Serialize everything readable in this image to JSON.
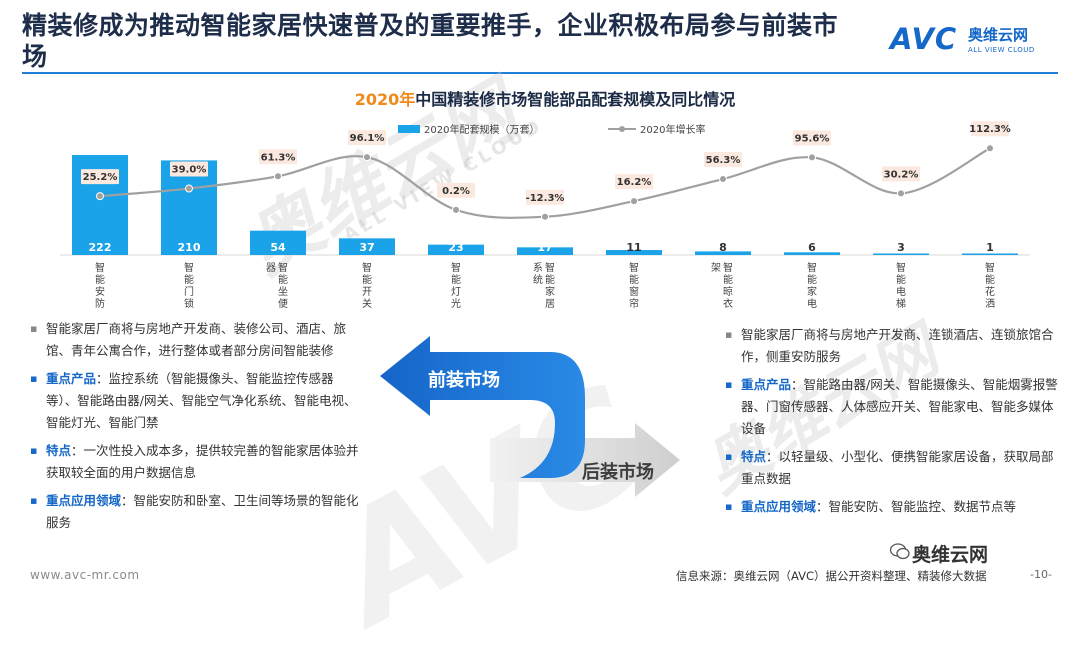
{
  "header": {
    "title": "精装修成为推动智能家居快速普及的重要推手，企业积极布局参与前装市场",
    "logo_mark": "AVC",
    "logo_cn": "奥维云网",
    "logo_en": "ALL VIEW CLOUD"
  },
  "chart_title": {
    "year": "2020年",
    "rest": "中国精装修市场智能部品配套规模及同比情况"
  },
  "chart_data": {
    "type": "bar",
    "categories": [
      "智能安防",
      "智能门锁",
      "智能坐便器",
      "智能开关",
      "智能灯光",
      "智能家居系统",
      "智能窗帘",
      "智能晾衣架",
      "智能家电",
      "智能电梯",
      "智能花洒"
    ],
    "series": [
      {
        "name": "2020年配套规模（万套）",
        "kind": "bar",
        "values": [
          222,
          210,
          54,
          37,
          23,
          17,
          11,
          8,
          6,
          3,
          1
        ]
      },
      {
        "name": "2020年增长率",
        "kind": "line",
        "values": [
          25.2,
          39.0,
          61.3,
          96.1,
          0.2,
          -12.3,
          16.2,
          56.3,
          95.6,
          30.2,
          112.3
        ]
      }
    ],
    "value_labels": [
      "222",
      "210",
      "54",
      "37",
      "23",
      "17",
      "11",
      "8",
      "6",
      "3",
      "1"
    ],
    "rate_labels": [
      "25.2%",
      "39.0%",
      "61.3%",
      "96.1%",
      "0.2%",
      "-12.3%",
      "16.2%",
      "56.3%",
      "95.6%",
      "30.2%",
      "112.3%"
    ],
    "category_label_lines": [
      [
        "智",
        "能",
        "安",
        "防"
      ],
      [
        "智",
        "能",
        "门",
        "锁"
      ],
      [
        "智",
        "能",
        "坐",
        "便",
        "器"
      ],
      [
        "智",
        "能",
        "开",
        "关"
      ],
      [
        "智",
        "能",
        "灯",
        "光"
      ],
      [
        "智",
        "能",
        "家",
        "居",
        "系",
        "统"
      ],
      [
        "智",
        "能",
        "窗",
        "帘"
      ],
      [
        "智",
        "能",
        "晾",
        "衣",
        "架"
      ],
      [
        "智",
        "能",
        "家",
        "电"
      ],
      [
        "智",
        "能",
        "电",
        "梯"
      ],
      [
        "智",
        "能",
        "花",
        "洒"
      ]
    ],
    "legend_position": "top",
    "colors": {
      "bar": "#1aa3e8",
      "line": "#a0a0a0",
      "rate_label_bg": "#fbe9df",
      "bar_label": "#ffffff"
    }
  },
  "watermark": {
    "cn": "奥维云网",
    "en": "ALL VIEW CLOUD",
    "big": "AVC"
  },
  "left_panel": {
    "intro": "智能家居厂商将与房地产开发商、装修公司、酒店、旅馆、青年公寓合作，进行整体或者部分房间智能装修",
    "items": [
      {
        "key": "重点产品",
        "text": "：监控系统（智能摄像头、智能监控传感器等）、智能路由器/网关、智能空气净化系统、智能电视、智能灯光、智能门禁"
      },
      {
        "key": "特点",
        "text": "：一次性投入成本多，提供较完善的智能家居体验并获取较全面的用户数据信息"
      },
      {
        "key": "重点应用领域",
        "text": "：智能安防和卧室、卫生间等场景的智能化服务"
      }
    ]
  },
  "arrows": {
    "front": "前装市场",
    "rear": "后装市场"
  },
  "right_panel": {
    "intro": "智能家居厂商将与房地产开发商、连锁酒店、连锁旅馆合作，侧重安防服务",
    "items": [
      {
        "key": "重点产品",
        "text": "：智能路由器/网关、智能摄像头、智能烟雾报警器、门窗传感器、人体感应开关、智能家电、智能多媒体设备"
      },
      {
        "key": "特点",
        "text": "：以轻量级、小型化、便携智能家居设备，获取局部重点数据"
      },
      {
        "key": "重点应用领域",
        "text": "：智能安防、智能监控、数据节点等"
      }
    ]
  },
  "footer": {
    "url": "www.avc-mr.com",
    "source": "信息来源：奥维云网（AVC）据公开资料整理、精装修大数据",
    "page": "-10-",
    "wechat": "奥维云网"
  }
}
